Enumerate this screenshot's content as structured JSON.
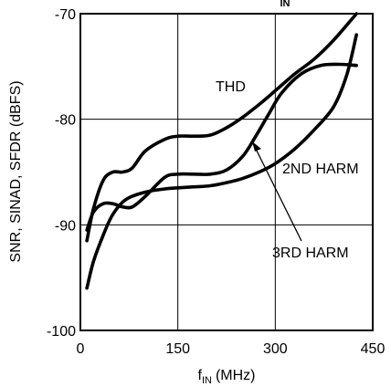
{
  "chart_data": {
    "type": "line",
    "top_text": "",
    "top_text_sub": "IN",
    "xlabel_main": "f",
    "xlabel_sub": "IN",
    "xlabel_unit": "(MHz)",
    "ylabel": "SNR, SINAD, SFDR (dBFS)",
    "xlim": [
      0,
      450
    ],
    "ylim": [
      -100,
      -70
    ],
    "xticks": [
      0,
      150,
      300,
      450
    ],
    "yticks": [
      -100,
      -90,
      -80,
      -70
    ],
    "x_tick_labels": [
      "0",
      "150",
      "300",
      "450"
    ],
    "y_tick_labels": [
      "-100",
      "-90",
      "-80",
      "-70"
    ],
    "grid": true,
    "series": [
      {
        "name": "THD",
        "x": [
          10,
          20,
          35,
          50,
          65,
          80,
          100,
          130,
          150,
          175,
          200,
          225,
          250,
          275,
          300,
          330,
          360,
          390,
          425
        ],
        "values": [
          -91.5,
          -88.5,
          -85.8,
          -85.0,
          -85.0,
          -84.6,
          -83.0,
          -81.9,
          -81.6,
          -81.6,
          -81.5,
          -80.8,
          -79.8,
          -78.6,
          -77.3,
          -75.7,
          -74.3,
          -72.5,
          -70.0
        ]
      },
      {
        "name": "2ND HARM",
        "x": [
          10,
          20,
          35,
          50,
          65,
          80,
          100,
          130,
          150,
          175,
          200,
          225,
          250,
          270,
          290,
          310,
          340,
          370,
          400,
          425
        ],
        "values": [
          -90.5,
          -88.8,
          -88.0,
          -88.0,
          -88.3,
          -88.3,
          -87.3,
          -85.5,
          -85.2,
          -85.2,
          -85.2,
          -84.8,
          -83.5,
          -81.6,
          -79.5,
          -77.5,
          -75.7,
          -74.9,
          -74.8,
          -74.9
        ]
      },
      {
        "name": "3RD HARM",
        "x": [
          10,
          20,
          35,
          50,
          70,
          100,
          130,
          150,
          175,
          200,
          225,
          250,
          275,
          300,
          330,
          360,
          390,
          410,
          425
        ],
        "values": [
          -96.0,
          -93.5,
          -91.0,
          -89.0,
          -87.6,
          -86.9,
          -86.6,
          -86.5,
          -86.4,
          -86.3,
          -86.0,
          -85.6,
          -85.0,
          -84.2,
          -82.8,
          -81.0,
          -78.8,
          -75.8,
          -72.0
        ]
      }
    ],
    "annotations": [
      {
        "text": "THD",
        "series": "THD"
      },
      {
        "text": "2ND HARM",
        "series": "2ND HARM"
      },
      {
        "text": "3RD HARM",
        "series": "3RD HARM"
      }
    ]
  }
}
